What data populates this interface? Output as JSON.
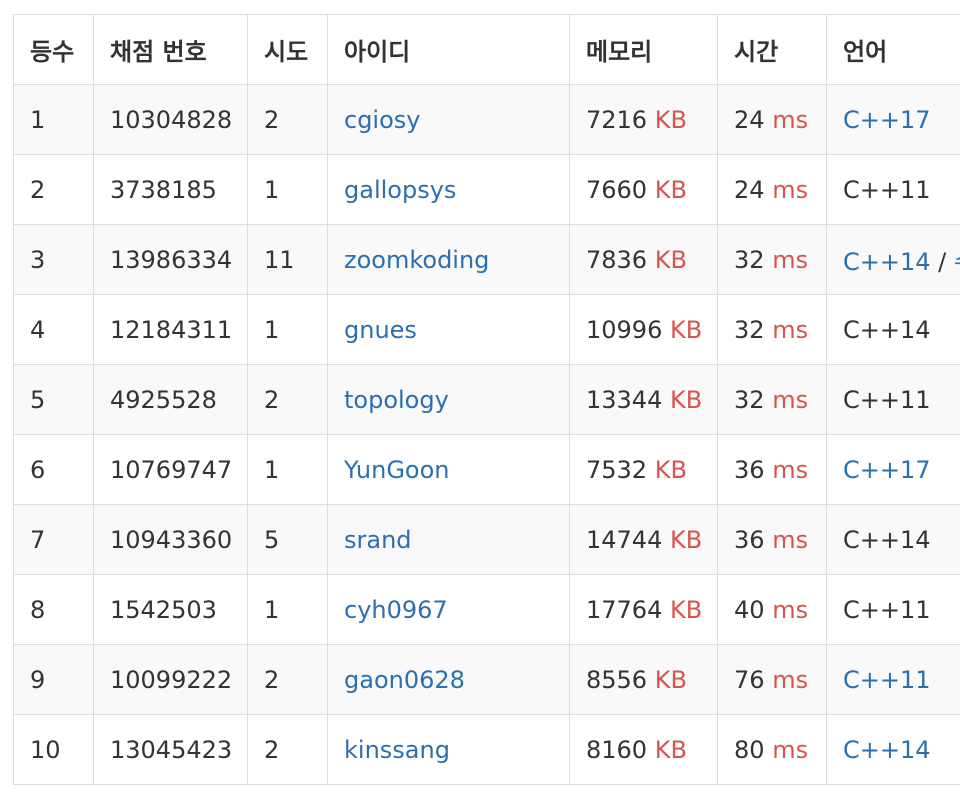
{
  "headers": [
    "등수",
    "채점 번호",
    "시도",
    "아이디",
    "메모리",
    "시간",
    "언어"
  ],
  "rows": [
    {
      "rank": "1",
      "submission": "10304828",
      "tries": "2",
      "user": "cgiosy",
      "memory": "7216",
      "memory_unit": "KB",
      "time": "24",
      "time_unit": "ms",
      "language": "C++17",
      "language_linked": true
    },
    {
      "rank": "2",
      "submission": "3738185",
      "tries": "1",
      "user": "gallopsys",
      "memory": "7660",
      "memory_unit": "KB",
      "time": "24",
      "time_unit": "ms",
      "language": "C++11",
      "language_linked": false
    },
    {
      "rank": "3",
      "submission": "13986334",
      "tries": "11",
      "user": "zoomkoding",
      "memory": "7836",
      "memory_unit": "KB",
      "time": "32",
      "time_unit": "ms",
      "language": "C++14",
      "language_linked": true,
      "language_extra": "/",
      "language_extra2": "수"
    },
    {
      "rank": "4",
      "submission": "12184311",
      "tries": "1",
      "user": "gnues",
      "memory": "10996",
      "memory_unit": "KB",
      "time": "32",
      "time_unit": "ms",
      "language": "C++14",
      "language_linked": false
    },
    {
      "rank": "5",
      "submission": "4925528",
      "tries": "2",
      "user": "topology",
      "memory": "13344",
      "memory_unit": "KB",
      "time": "32",
      "time_unit": "ms",
      "language": "C++11",
      "language_linked": false
    },
    {
      "rank": "6",
      "submission": "10769747",
      "tries": "1",
      "user": "YunGoon",
      "memory": "7532",
      "memory_unit": "KB",
      "time": "36",
      "time_unit": "ms",
      "language": "C++17",
      "language_linked": true
    },
    {
      "rank": "7",
      "submission": "10943360",
      "tries": "5",
      "user": "srand",
      "memory": "14744",
      "memory_unit": "KB",
      "time": "36",
      "time_unit": "ms",
      "language": "C++14",
      "language_linked": false
    },
    {
      "rank": "8",
      "submission": "1542503",
      "tries": "1",
      "user": "cyh0967",
      "memory": "17764",
      "memory_unit": "KB",
      "time": "40",
      "time_unit": "ms",
      "language": "C++11",
      "language_linked": false
    },
    {
      "rank": "9",
      "submission": "10099222",
      "tries": "2",
      "user": "gaon0628",
      "memory": "8556",
      "memory_unit": "KB",
      "time": "76",
      "time_unit": "ms",
      "language": "C++11",
      "language_linked": true
    },
    {
      "rank": "10",
      "submission": "13045423",
      "tries": "2",
      "user": "kinssang",
      "memory": "8160",
      "memory_unit": "KB",
      "time": "80",
      "time_unit": "ms",
      "language": "C++14",
      "language_linked": true
    }
  ],
  "colors": {
    "link": "#2a6fb0",
    "unit": "#d9534f",
    "text": "#333333",
    "border": "#dddddd",
    "stripe": "#f9f9f9"
  }
}
